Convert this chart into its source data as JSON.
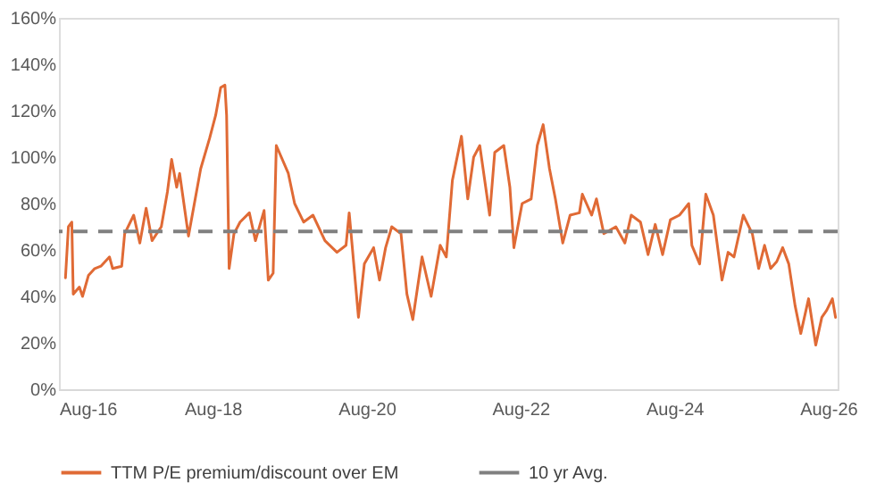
{
  "chart_data": {
    "type": "line",
    "x": [
      "2016-09-01",
      "2016-09-15",
      "2016-10-01",
      "2016-10-08",
      "2016-11-06",
      "2016-11-21",
      "2016-12-19",
      "2017-01-18",
      "2017-02-16",
      "2017-03-29",
      "2017-04-13",
      "2017-05-26",
      "2017-06-09",
      "2017-07-22",
      "2017-08-20",
      "2017-09-19",
      "2017-10-17",
      "2017-11-30",
      "2017-12-29",
      "2018-01-18",
      "2018-02-11",
      "2018-02-25",
      "2018-04-08",
      "2018-06-05",
      "2018-07-17",
      "2018-08-15",
      "2018-09-08",
      "2018-09-28",
      "2018-10-06",
      "2018-10-18",
      "2018-11-10",
      "2018-12-09",
      "2019-01-22",
      "2019-02-20",
      "2019-04-02",
      "2019-04-22",
      "2019-05-15",
      "2019-05-30",
      "2019-07-26",
      "2019-08-25",
      "2019-10-07",
      "2019-11-20",
      "2020-01-16",
      "2020-03-13",
      "2020-04-25",
      "2020-05-10",
      "2020-05-24",
      "2020-06-23",
      "2020-07-21",
      "2020-09-03",
      "2020-10-01",
      "2020-10-30",
      "2020-11-28",
      "2021-01-11",
      "2021-02-08",
      "2021-03-08",
      "2021-04-21",
      "2021-06-03",
      "2021-07-16",
      "2021-08-14",
      "2021-09-12",
      "2021-10-25",
      "2021-11-24",
      "2021-12-22",
      "2022-01-20",
      "2022-03-08",
      "2022-04-01",
      "2022-05-14",
      "2022-06-12",
      "2022-07-01",
      "2022-08-09",
      "2022-09-21",
      "2022-10-20",
      "2022-11-17",
      "2022-12-17",
      "2023-01-14",
      "2023-02-18",
      "2023-03-25",
      "2023-05-08",
      "2023-05-22",
      "2023-07-05",
      "2023-07-28",
      "2023-09-01",
      "2023-10-28",
      "2023-12-10",
      "2024-01-09",
      "2024-02-22",
      "2024-03-29",
      "2024-05-02",
      "2024-06-06",
      "2024-07-13",
      "2024-08-25",
      "2024-10-08",
      "2024-10-23",
      "2024-11-29",
      "2024-12-28",
      "2025-02-02",
      "2025-03-15",
      "2025-04-13",
      "2025-05-11",
      "2025-06-24",
      "2025-08-06",
      "2025-09-05",
      "2025-10-03",
      "2025-11-01",
      "2025-11-30",
      "2025-12-28",
      "2026-01-26",
      "2026-02-25",
      "2026-03-24",
      "2026-04-30",
      "2026-06-03",
      "2026-07-02",
      "2026-07-25",
      "2026-08-21",
      "2026-09-05"
    ],
    "series": [
      {
        "name": "TTM P/E premium/discount over EM",
        "color": "#e06a35",
        "values": [
          48,
          70,
          72,
          41,
          44,
          40,
          49,
          52,
          53,
          57,
          52,
          53,
          67,
          75,
          63,
          78,
          64,
          70,
          85,
          99,
          87,
          93,
          66,
          95,
          108,
          118,
          130,
          131,
          118,
          52,
          67,
          72,
          76,
          64,
          77,
          47,
          50,
          105,
          93,
          80,
          72,
          75,
          64,
          59,
          62,
          76,
          62,
          31,
          54,
          61,
          47,
          61,
          70,
          67,
          41,
          30,
          57,
          40,
          62,
          57,
          90,
          109,
          82,
          100,
          105,
          75,
          102,
          105,
          87,
          61,
          80,
          82,
          105,
          114,
          95,
          82,
          63,
          75,
          76,
          84,
          75,
          82,
          67,
          70,
          63,
          75,
          72,
          58,
          71,
          58,
          73,
          75,
          80,
          62,
          54,
          84,
          75,
          47,
          59,
          57,
          75,
          67,
          52,
          62,
          52,
          55,
          61,
          54,
          36,
          24,
          39,
          19,
          31,
          34,
          39,
          31
        ]
      }
    ],
    "ref_lines": [
      {
        "axis": "y",
        "value": 68,
        "label": "10 yr Avg.",
        "color": "#808080",
        "line_style": "dashed"
      }
    ],
    "xlim": [
      "2016-08-01",
      "2026-09-15"
    ],
    "xticks": [
      {
        "value": "2016-08-01",
        "label": "Aug-16"
      },
      {
        "value": "2018-08-01",
        "label": "Aug-18"
      },
      {
        "value": "2020-08-01",
        "label": "Aug-20"
      },
      {
        "value": "2022-08-01",
        "label": "Aug-22"
      },
      {
        "value": "2024-08-01",
        "label": "Aug-24"
      },
      {
        "value": "2026-08-01",
        "label": "Aug-26"
      }
    ],
    "ylim": [
      0,
      160
    ],
    "yticks": [
      {
        "value": 0,
        "label": "0%"
      },
      {
        "value": 20,
        "label": "20%"
      },
      {
        "value": 40,
        "label": "40%"
      },
      {
        "value": 60,
        "label": "60%"
      },
      {
        "value": 80,
        "label": "80%"
      },
      {
        "value": 100,
        "label": "100%"
      },
      {
        "value": 120,
        "label": "120%"
      },
      {
        "value": 140,
        "label": "140%"
      },
      {
        "value": 160,
        "label": "160%"
      }
    ],
    "grid": false,
    "legend": "bottom",
    "marker": "none",
    "line_style": "solid"
  }
}
